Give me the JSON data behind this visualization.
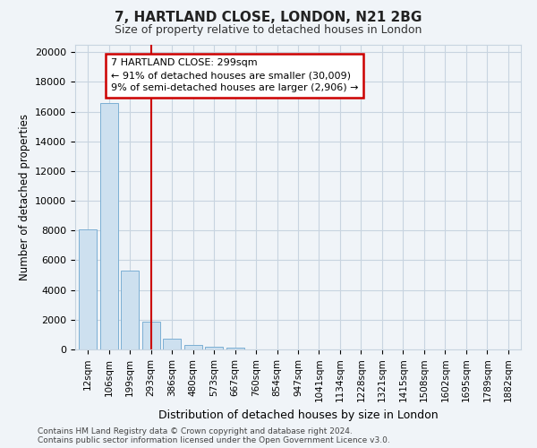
{
  "title1": "7, HARTLAND CLOSE, LONDON, N21 2BG",
  "title2": "Size of property relative to detached houses in London",
  "xlabel": "Distribution of detached houses by size in London",
  "ylabel": "Number of detached properties",
  "categories": [
    "12sqm",
    "106sqm",
    "199sqm",
    "293sqm",
    "386sqm",
    "480sqm",
    "573sqm",
    "667sqm",
    "760sqm",
    "854sqm",
    "947sqm",
    "1041sqm",
    "1134sqm",
    "1228sqm",
    "1321sqm",
    "1415sqm",
    "1508sqm",
    "1602sqm",
    "1695sqm",
    "1789sqm",
    "1882sqm"
  ],
  "values": [
    8100,
    16600,
    5300,
    1850,
    750,
    300,
    200,
    130,
    0,
    0,
    0,
    0,
    0,
    0,
    0,
    0,
    0,
    0,
    0,
    0,
    0
  ],
  "bar_color": "#cde0ef",
  "bar_edge_color": "#7bafd4",
  "vline_x_idx": 3,
  "vline_color": "#cc0000",
  "annotation_text": "7 HARTLAND CLOSE: 299sqm\n← 91% of detached houses are smaller (30,009)\n9% of semi-detached houses are larger (2,906) →",
  "annotation_box_color": "#cc0000",
  "ylim": [
    0,
    20500
  ],
  "yticks": [
    0,
    2000,
    4000,
    6000,
    8000,
    10000,
    12000,
    14000,
    16000,
    18000,
    20000
  ],
  "footer1": "Contains HM Land Registry data © Crown copyright and database right 2024.",
  "footer2": "Contains public sector information licensed under the Open Government Licence v3.0.",
  "bg_color": "#f0f4f8",
  "plot_bg_color": "#f0f4f8",
  "grid_color": "#c8d4e0"
}
